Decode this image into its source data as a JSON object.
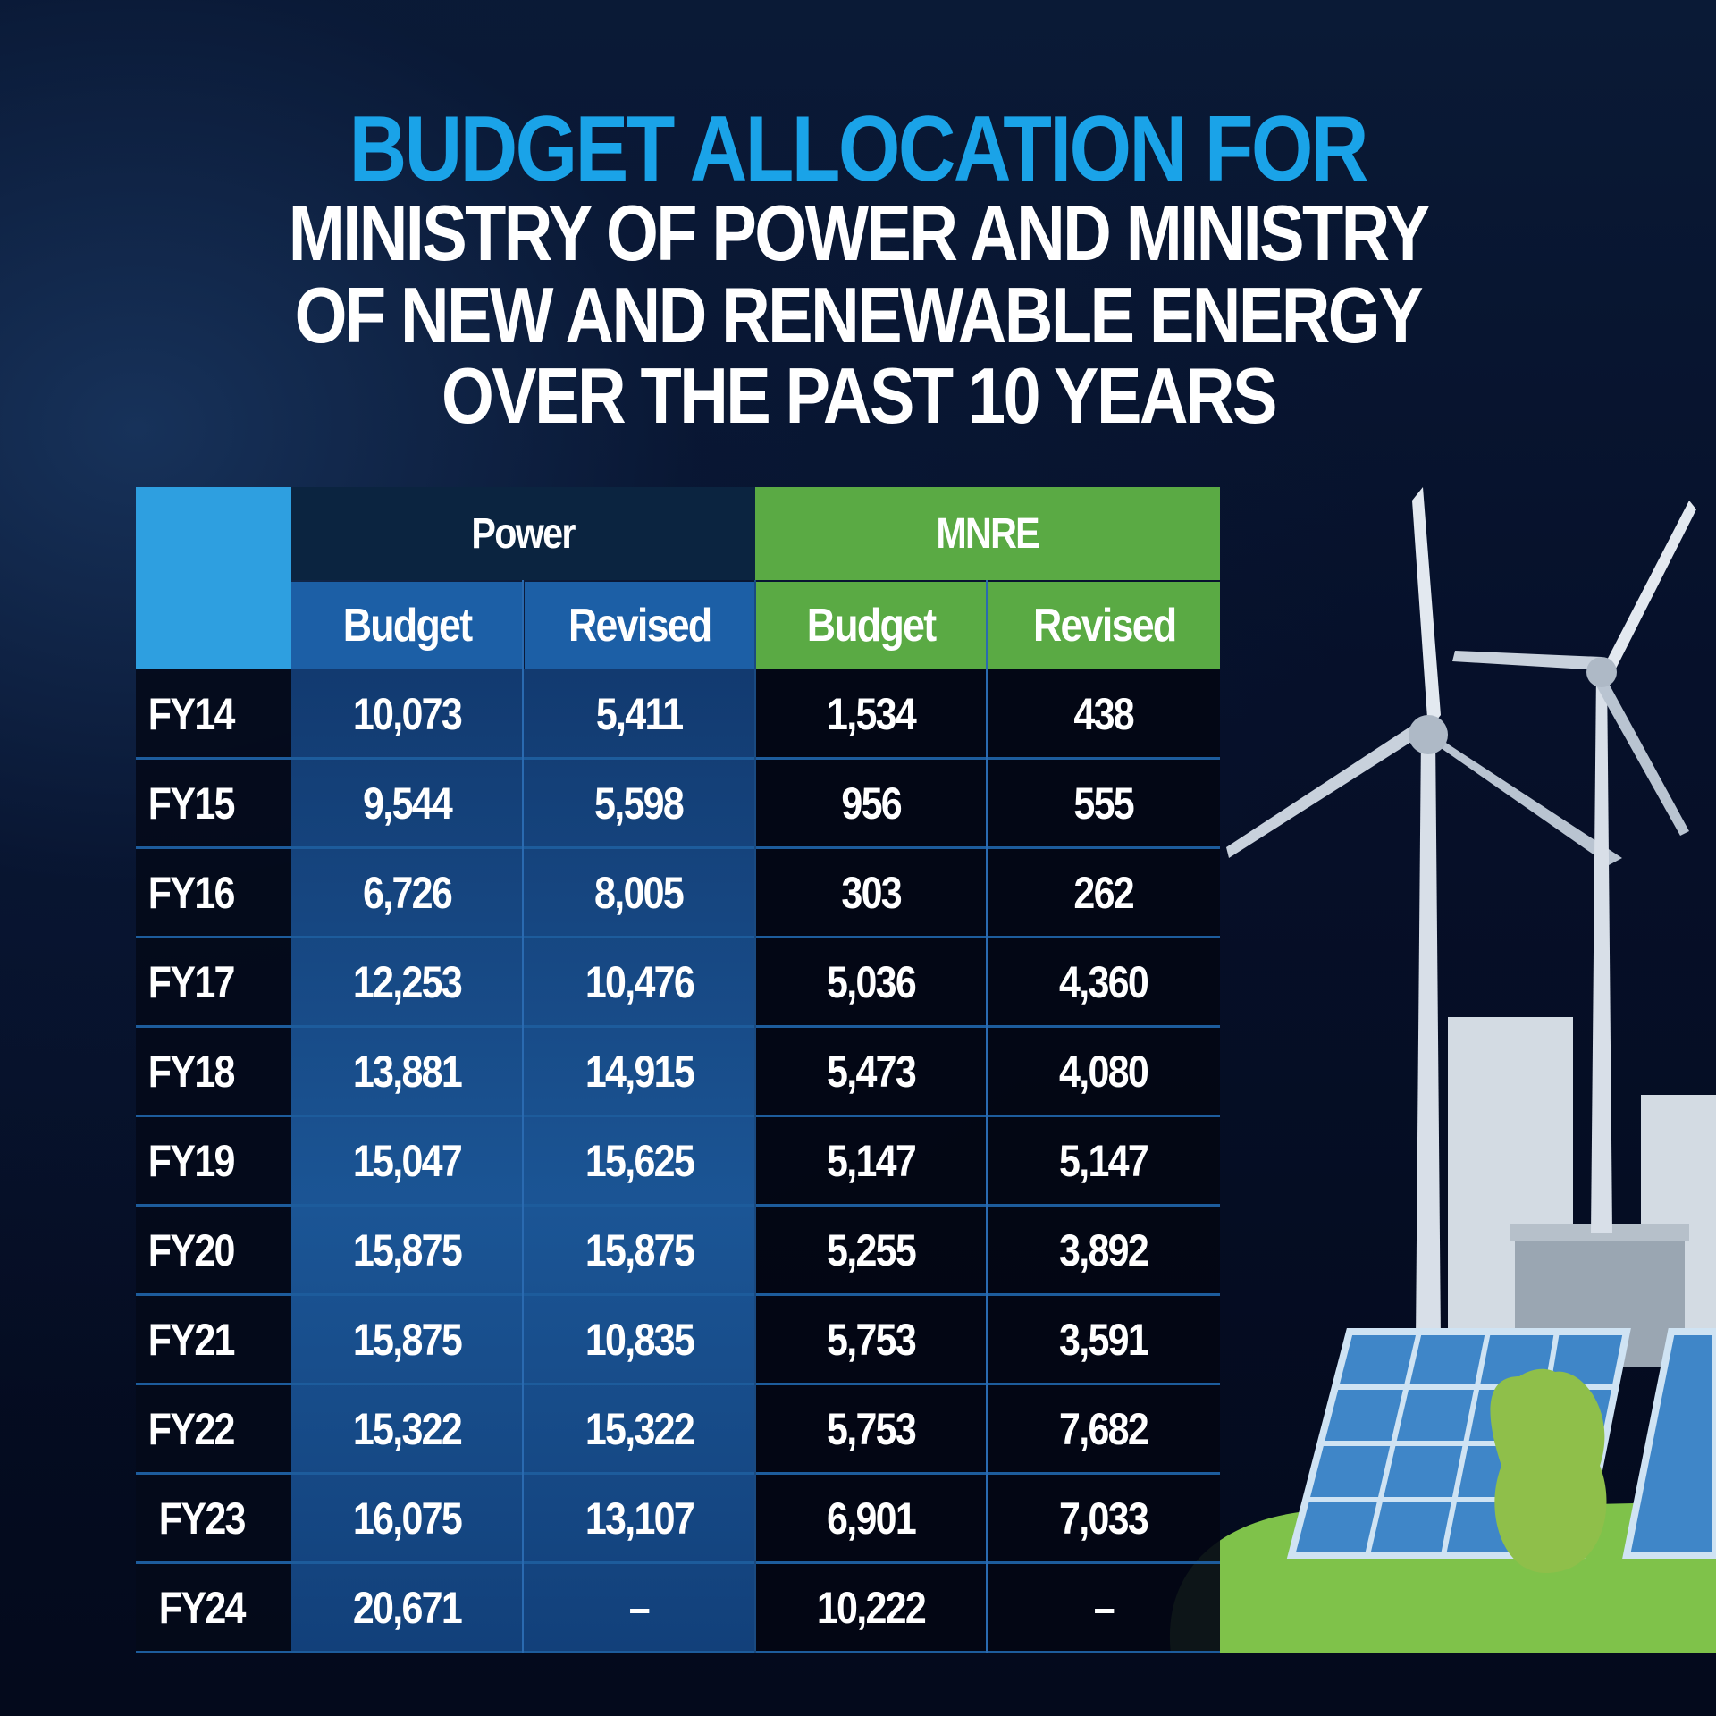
{
  "title": {
    "line1": "BUDGET ALLOCATION FOR",
    "line2": "MINISTRY OF POWER AND MINISTRY",
    "line3": "OF NEW AND RENEWABLE ENERGY",
    "line4": "OVER THE PAST 10 YEARS"
  },
  "colors": {
    "title_accent": "#1aa3e8",
    "power_header": "#0b2440",
    "power_sub": "#1a5fa8",
    "mnre": "#5aaa44",
    "corner": "#2e9fe0",
    "background": "#050b1c"
  },
  "illustration_icons": [
    "wind-turbine-icon",
    "building-icon",
    "solar-panel-icon",
    "tree-icon"
  ],
  "chart_data": {
    "type": "table",
    "groups": [
      {
        "name": "Power",
        "columns": [
          "Budget",
          "Revised"
        ]
      },
      {
        "name": "MNRE",
        "columns": [
          "Budget",
          "Revised"
        ]
      }
    ],
    "rows": [
      {
        "label": "FY14",
        "values": [
          "10,073",
          "5,411",
          "1,534",
          "438"
        ]
      },
      {
        "label": "FY15",
        "values": [
          "9,544",
          "5,598",
          "956",
          "555"
        ]
      },
      {
        "label": "FY16",
        "values": [
          "6,726",
          "8,005",
          "303",
          "262"
        ]
      },
      {
        "label": "FY17",
        "values": [
          "12,253",
          "10,476",
          "5,036",
          "4,360"
        ]
      },
      {
        "label": "FY18",
        "values": [
          "13,881",
          "14,915",
          "5,473",
          "4,080"
        ]
      },
      {
        "label": "FY19",
        "values": [
          "15,047",
          "15,625",
          "5,147",
          "5,147"
        ]
      },
      {
        "label": "FY20",
        "values": [
          "15,875",
          "15,875",
          "5,255",
          "3,892"
        ]
      },
      {
        "label": "FY21",
        "values": [
          "15,875",
          "10,835",
          "5,753",
          "3,591"
        ]
      },
      {
        "label": "FY22",
        "values": [
          "15,322",
          "15,322",
          "5,753",
          "7,682"
        ]
      },
      {
        "label": "FY23",
        "values": [
          "16,075",
          "13,107",
          "6,901",
          "7,033"
        ]
      },
      {
        "label": "FY24",
        "values": [
          "20,671",
          "–",
          "10,222",
          "–"
        ]
      }
    ]
  }
}
